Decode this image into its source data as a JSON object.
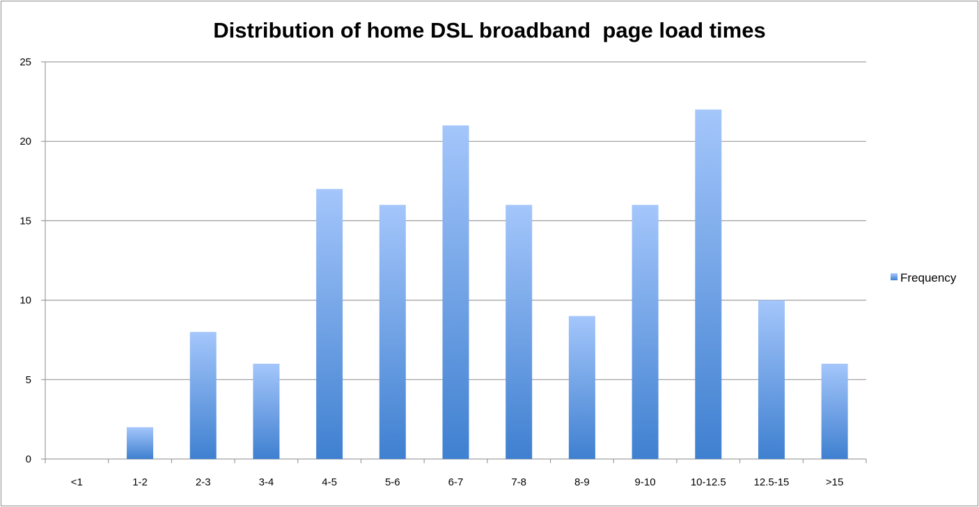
{
  "chart_data": {
    "type": "bar",
    "title": "Distribution of home DSL broadband  page load times",
    "xlabel": "",
    "ylabel": "",
    "categories": [
      "<1",
      "1-2",
      "2-3",
      "3-4",
      "4-5",
      "5-6",
      "6-7",
      "7-8",
      "8-9",
      "9-10",
      "10-12.5",
      "12.5-15",
      ">15"
    ],
    "series": [
      {
        "name": "Frequency",
        "values": [
          0,
          2,
          8,
          6,
          17,
          16,
          21,
          16,
          9,
          16,
          22,
          10,
          6
        ],
        "color_top": "#a4c6fb",
        "color_bottom": "#3f80d0"
      }
    ],
    "ylim": [
      0,
      25
    ],
    "yticks": [
      0,
      5,
      10,
      15,
      20,
      25
    ],
    "grid": true,
    "legend": "right"
  }
}
